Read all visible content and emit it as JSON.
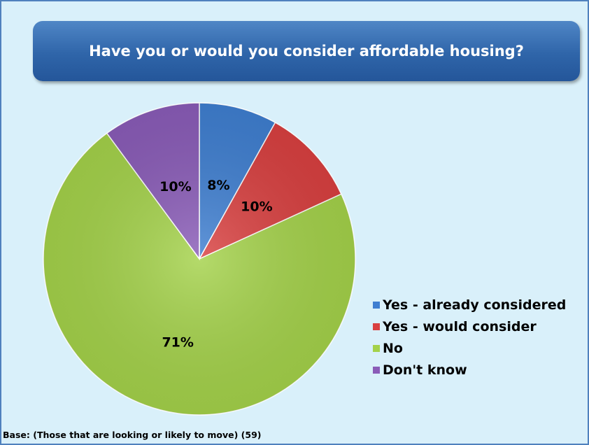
{
  "chart_data": {
    "type": "pie",
    "title": "Have you or would you consider affordable housing?",
    "slices": [
      {
        "label": "Yes - already considered",
        "value": 8,
        "display": "8%",
        "color": "#3f7fd1"
      },
      {
        "label": "Yes - would consider",
        "value": 10,
        "display": "10%",
        "color": "#d94040"
      },
      {
        "label": "No",
        "value": 71,
        "display": "71%",
        "color": "#a4d24a"
      },
      {
        "label": "Don't know",
        "value": 10,
        "display": "10%",
        "color": "#8a5cb8"
      }
    ],
    "legend_position": "right",
    "footnote": "Base: (Those that are looking  or likely to move) (59)"
  }
}
